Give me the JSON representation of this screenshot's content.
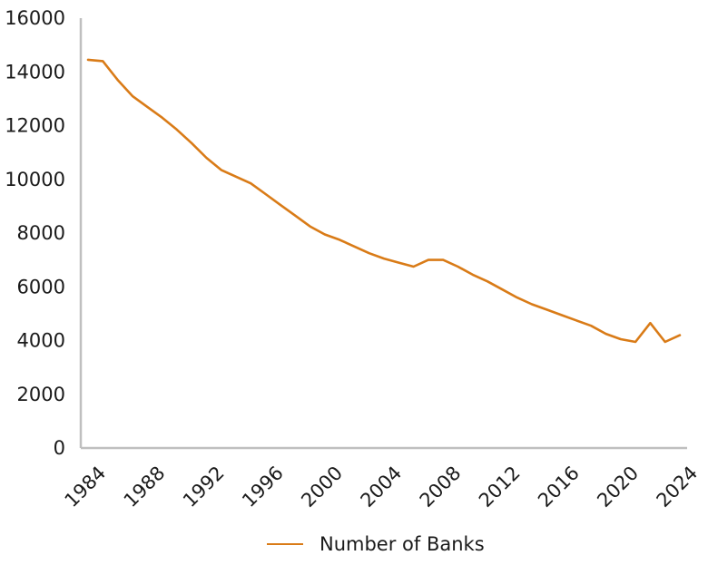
{
  "chart_data": {
    "type": "line",
    "title": "",
    "xlabel": "",
    "ylabel": "",
    "x": [
      1984,
      1985,
      1986,
      1987,
      1988,
      1989,
      1990,
      1991,
      1992,
      1993,
      1994,
      1995,
      1996,
      1997,
      1998,
      1999,
      2000,
      2001,
      2002,
      2003,
      2004,
      2005,
      2006,
      2007,
      2008,
      2009,
      2010,
      2011,
      2012,
      2013,
      2014,
      2015,
      2016,
      2017,
      2018,
      2019,
      2020,
      2021,
      2022,
      2023,
      2024
    ],
    "series": [
      {
        "name": "Number of Banks",
        "color": "#d97b17",
        "values": [
          14450,
          14400,
          13700,
          13100,
          12700,
          12300,
          11850,
          11350,
          10800,
          10350,
          10100,
          9850,
          9450,
          9050,
          8650,
          8250,
          7950,
          7750,
          7500,
          7250,
          7050,
          6900,
          6750,
          7000,
          7000,
          6750,
          6450,
          6200,
          5900,
          5600,
          5350,
          5150,
          4950,
          4750,
          4550,
          4250,
          4050,
          3950,
          4650,
          3950,
          4200
        ]
      }
    ],
    "xticks": [
      "1984",
      "1988",
      "1992",
      "1996",
      "2000",
      "2004",
      "2008",
      "2012",
      "2016",
      "2020",
      "2024"
    ],
    "yticks": [
      "0",
      "2000",
      "4000",
      "6000",
      "8000",
      "10000",
      "12000",
      "14000",
      "16000"
    ],
    "ylim": [
      0,
      16000
    ],
    "xlim": [
      1984,
      2024
    ],
    "grid": false,
    "legend_position": "bottom-center"
  }
}
